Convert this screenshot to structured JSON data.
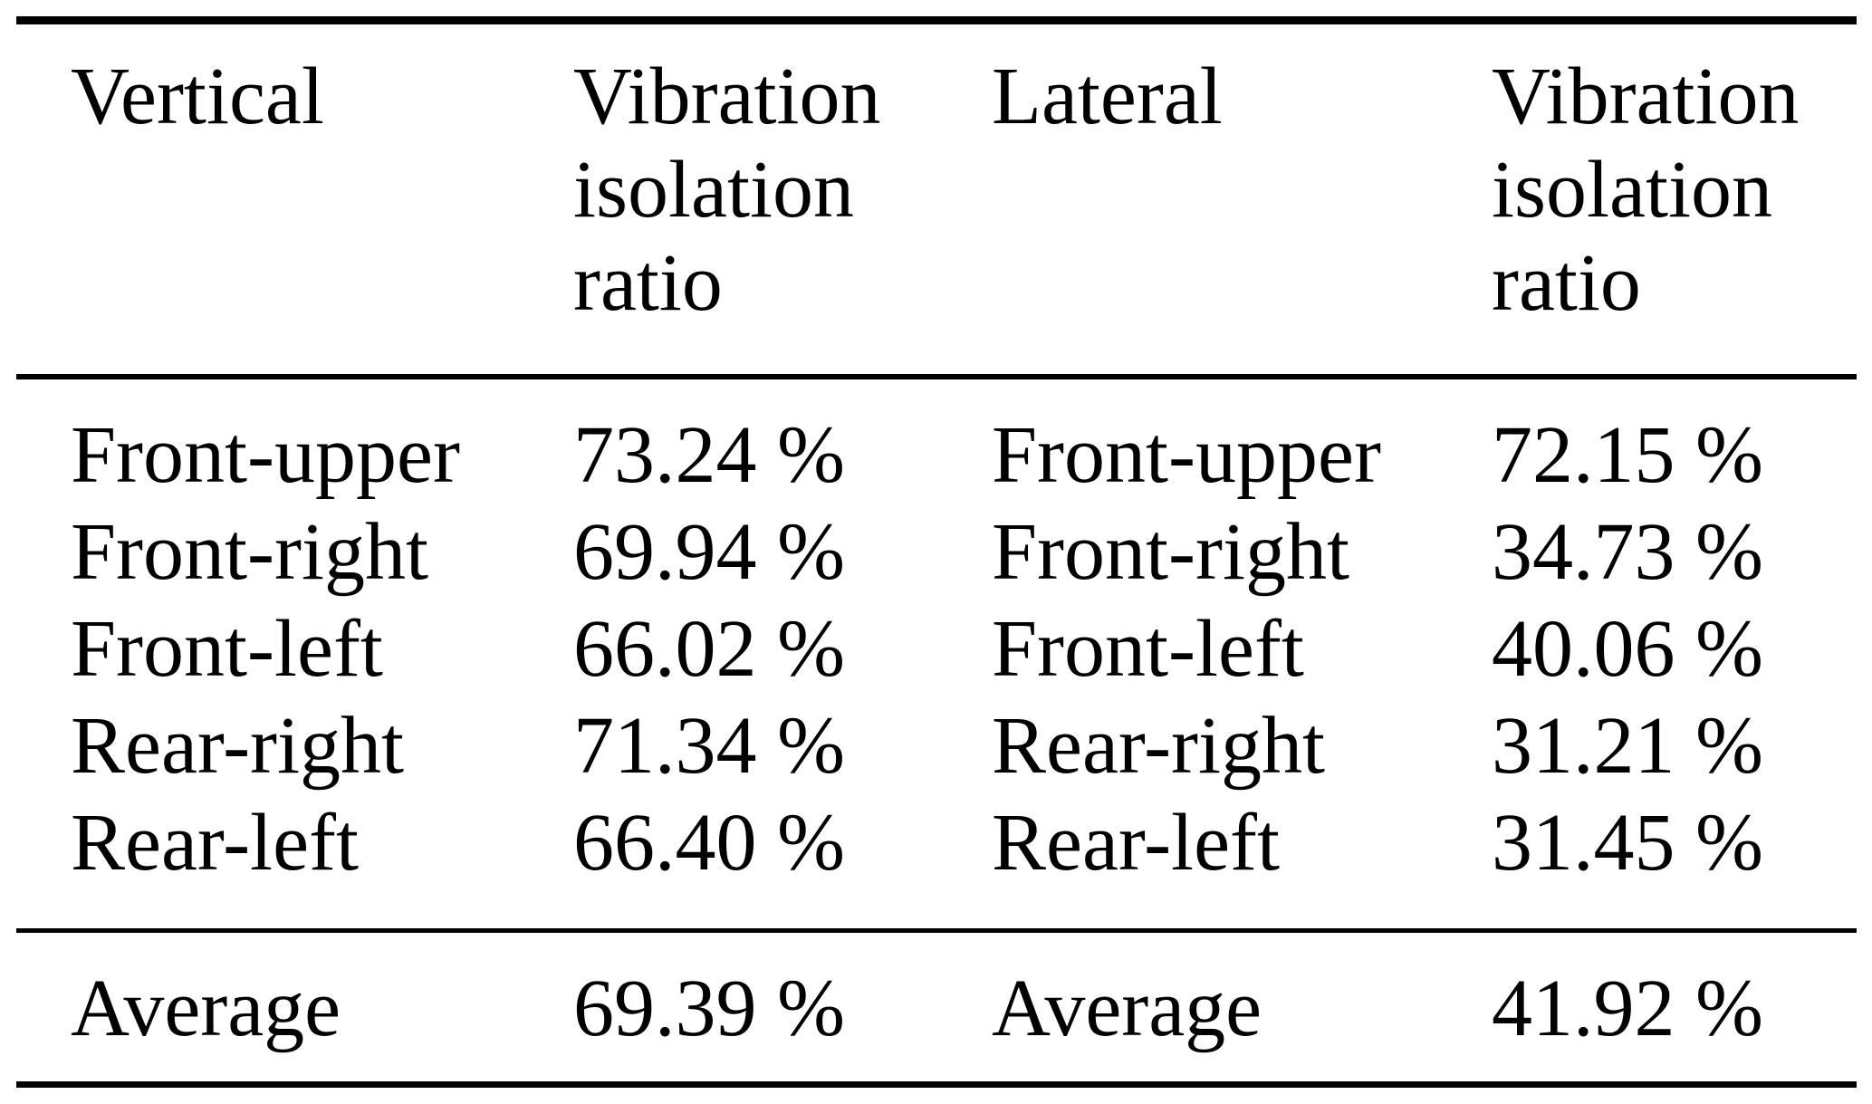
{
  "table": {
    "title_semantic": "vibration-isolation-ratio-table",
    "headers": [
      "Vertical",
      "Vibration isolation ratio",
      "Lateral",
      "Vibration isolation ratio"
    ],
    "rows": [
      {
        "cells": [
          "Front-upper",
          "73.24 %",
          "Front-upper",
          "72.15 %"
        ]
      },
      {
        "cells": [
          "Front-right",
          "69.94 %",
          "Front-right",
          "34.73 %"
        ]
      },
      {
        "cells": [
          "Front-left",
          "66.02 %",
          "Front-left",
          "40.06 %"
        ]
      },
      {
        "cells": [
          "Rear-right",
          "71.34 %",
          "Rear-right",
          "31.21 %"
        ]
      },
      {
        "cells": [
          "Rear-left",
          "66.40 %",
          "Rear-left",
          "31.45 %"
        ]
      }
    ],
    "footer": {
      "cells": [
        "Average",
        "69.39 %",
        "Average",
        "41.92 %"
      ]
    }
  },
  "chart_data": {
    "type": "table",
    "columns": [
      "Vertical",
      "Vibration isolation ratio",
      "Lateral",
      "Vibration isolation ratio"
    ],
    "series": [
      {
        "name": "Vertical vibration isolation ratio",
        "categories": [
          "Front-upper",
          "Front-right",
          "Front-left",
          "Rear-right",
          "Rear-left"
        ],
        "values_percent": [
          73.24,
          69.94,
          66.02,
          71.34,
          66.4
        ],
        "average_percent": 69.39
      },
      {
        "name": "Lateral vibration isolation ratio",
        "categories": [
          "Front-upper",
          "Front-right",
          "Front-left",
          "Rear-right",
          "Rear-left"
        ],
        "values_percent": [
          72.15,
          34.73,
          40.06,
          31.21,
          31.45
        ],
        "average_percent": 41.92
      }
    ]
  },
  "colors": {
    "text": "#000000",
    "background": "#ffffff",
    "rule": "#000000"
  }
}
